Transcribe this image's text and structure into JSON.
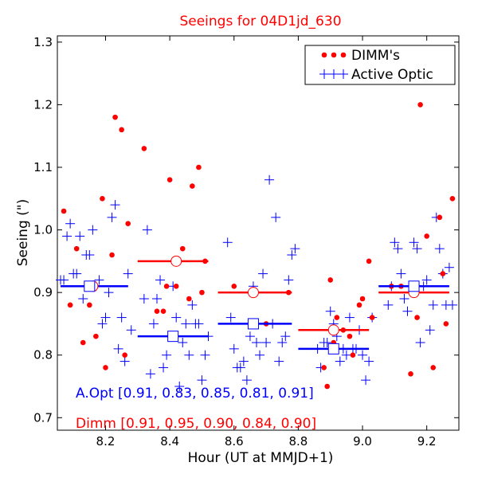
{
  "chart_data": {
    "type": "scatter",
    "title": "Seeings for 04D1jd_630",
    "xlabel": "Hour (UT at MMJD+1)",
    "ylabel": "Seeing (\")",
    "xlim": [
      8.05,
      9.3
    ],
    "ylim": [
      0.68,
      1.31
    ],
    "xticks": [
      8.2,
      8.4,
      8.6,
      8.8,
      9.0,
      9.2
    ],
    "xtick_labels": [
      "8.2",
      "8.4",
      "8.6",
      "8.8",
      "9.0",
      "9.2"
    ],
    "yticks": [
      0.7,
      0.8,
      0.9,
      1.0,
      1.1,
      1.2,
      1.3
    ],
    "ytick_labels": [
      "0.7",
      "0.8",
      "0.9",
      "1.0",
      "1.1",
      "1.2",
      "1.3"
    ],
    "grid": false,
    "legend_position": "top-right",
    "colors": {
      "dimm": "#ff0000",
      "ao": "#0000ff",
      "title": "#ff0000"
    },
    "series": [
      {
        "name": "DIMM's",
        "marker": "dot",
        "points": [
          [
            8.07,
            1.03
          ],
          [
            8.09,
            0.88
          ],
          [
            8.11,
            0.97
          ],
          [
            8.13,
            0.82
          ],
          [
            8.15,
            0.88
          ],
          [
            8.17,
            0.83
          ],
          [
            8.19,
            1.05
          ],
          [
            8.2,
            0.78
          ],
          [
            8.22,
            0.96
          ],
          [
            8.23,
            1.18
          ],
          [
            8.25,
            1.16
          ],
          [
            8.26,
            0.8
          ],
          [
            8.27,
            1.01
          ],
          [
            8.32,
            1.13
          ],
          [
            8.36,
            0.87
          ],
          [
            8.38,
            0.87
          ],
          [
            8.39,
            0.91
          ],
          [
            8.4,
            1.08
          ],
          [
            8.42,
            0.91
          ],
          [
            8.44,
            0.97
          ],
          [
            8.46,
            0.89
          ],
          [
            8.47,
            1.07
          ],
          [
            8.49,
            1.1
          ],
          [
            8.5,
            0.9
          ],
          [
            8.51,
            0.95
          ],
          [
            8.6,
            0.91
          ],
          [
            8.7,
            0.85
          ],
          [
            8.77,
            0.9
          ],
          [
            8.88,
            0.78
          ],
          [
            8.89,
            0.75
          ],
          [
            8.9,
            0.92
          ],
          [
            8.91,
            0.82
          ],
          [
            8.92,
            0.86
          ],
          [
            8.94,
            0.84
          ],
          [
            8.96,
            0.83
          ],
          [
            8.97,
            0.8
          ],
          [
            8.99,
            0.88
          ],
          [
            9.0,
            0.89
          ],
          [
            9.02,
            0.95
          ],
          [
            9.03,
            0.86
          ],
          [
            9.09,
            0.91
          ],
          [
            9.12,
            0.91
          ],
          [
            9.15,
            0.77
          ],
          [
            9.17,
            0.86
          ],
          [
            9.18,
            1.2
          ],
          [
            9.2,
            0.99
          ],
          [
            9.22,
            0.78
          ],
          [
            9.24,
            1.02
          ],
          [
            9.25,
            0.93
          ],
          [
            9.26,
            0.85
          ],
          [
            9.28,
            1.05
          ]
        ]
      },
      {
        "name": "Active Optic",
        "marker": "plus",
        "points": [
          [
            8.06,
            0.92
          ],
          [
            8.07,
            0.92
          ],
          [
            8.08,
            0.99
          ],
          [
            8.09,
            1.01
          ],
          [
            8.1,
            0.93
          ],
          [
            8.11,
            0.93
          ],
          [
            8.12,
            0.99
          ],
          [
            8.13,
            0.89
          ],
          [
            8.14,
            0.96
          ],
          [
            8.15,
            0.96
          ],
          [
            8.16,
            1.0
          ],
          [
            8.17,
            0.91
          ],
          [
            8.18,
            0.92
          ],
          [
            8.19,
            0.85
          ],
          [
            8.2,
            0.86
          ],
          [
            8.21,
            0.9
          ],
          [
            8.22,
            1.02
          ],
          [
            8.23,
            1.04
          ],
          [
            8.24,
            0.81
          ],
          [
            8.25,
            0.86
          ],
          [
            8.26,
            0.79
          ],
          [
            8.27,
            0.93
          ],
          [
            8.28,
            0.84
          ],
          [
            8.32,
            0.89
          ],
          [
            8.33,
            1.0
          ],
          [
            8.34,
            0.77
          ],
          [
            8.35,
            0.85
          ],
          [
            8.36,
            0.89
          ],
          [
            8.37,
            0.92
          ],
          [
            8.38,
            0.78
          ],
          [
            8.39,
            0.8
          ],
          [
            8.4,
            0.83
          ],
          [
            8.41,
            0.91
          ],
          [
            8.42,
            0.86
          ],
          [
            8.43,
            0.75
          ],
          [
            8.44,
            0.82
          ],
          [
            8.45,
            0.85
          ],
          [
            8.46,
            0.8
          ],
          [
            8.47,
            0.88
          ],
          [
            8.48,
            0.85
          ],
          [
            8.49,
            0.85
          ],
          [
            8.5,
            0.76
          ],
          [
            8.51,
            0.8
          ],
          [
            8.52,
            0.83
          ],
          [
            8.58,
            0.98
          ],
          [
            8.59,
            0.86
          ],
          [
            8.6,
            0.81
          ],
          [
            8.61,
            0.78
          ],
          [
            8.62,
            0.78
          ],
          [
            8.63,
            0.79
          ],
          [
            8.64,
            0.76
          ],
          [
            8.65,
            0.83
          ],
          [
            8.66,
            0.91
          ],
          [
            8.67,
            0.82
          ],
          [
            8.68,
            0.8
          ],
          [
            8.69,
            0.93
          ],
          [
            8.7,
            0.82
          ],
          [
            8.71,
            1.08
          ],
          [
            8.72,
            0.85
          ],
          [
            8.73,
            1.02
          ],
          [
            8.74,
            0.79
          ],
          [
            8.75,
            0.82
          ],
          [
            8.76,
            0.83
          ],
          [
            8.77,
            0.92
          ],
          [
            8.78,
            0.96
          ],
          [
            8.79,
            0.97
          ],
          [
            8.86,
            0.81
          ],
          [
            8.87,
            0.78
          ],
          [
            8.88,
            0.82
          ],
          [
            8.89,
            0.82
          ],
          [
            8.9,
            0.87
          ],
          [
            8.91,
            0.85
          ],
          [
            8.92,
            0.83
          ],
          [
            8.93,
            0.79
          ],
          [
            8.94,
            0.81
          ],
          [
            8.95,
            0.8
          ],
          [
            8.96,
            0.86
          ],
          [
            8.97,
            0.81
          ],
          [
            8.98,
            0.81
          ],
          [
            8.99,
            0.84
          ],
          [
            9.0,
            0.8
          ],
          [
            9.01,
            0.76
          ],
          [
            9.02,
            0.79
          ],
          [
            9.03,
            0.86
          ],
          [
            9.08,
            0.88
          ],
          [
            9.09,
            0.91
          ],
          [
            9.1,
            0.98
          ],
          [
            9.11,
            0.97
          ],
          [
            9.12,
            0.93
          ],
          [
            9.13,
            0.89
          ],
          [
            9.14,
            0.87
          ],
          [
            9.15,
            0.91
          ],
          [
            9.16,
            0.98
          ],
          [
            9.17,
            0.97
          ],
          [
            9.18,
            0.82
          ],
          [
            9.19,
            0.91
          ],
          [
            9.2,
            0.92
          ],
          [
            9.21,
            0.84
          ],
          [
            9.22,
            0.88
          ],
          [
            9.23,
            1.02
          ],
          [
            9.24,
            0.97
          ],
          [
            9.25,
            0.93
          ],
          [
            9.26,
            0.88
          ],
          [
            9.27,
            0.94
          ],
          [
            9.28,
            0.88
          ]
        ]
      }
    ],
    "bin_means": {
      "dimm": {
        "name": "Dimm",
        "bins": [
          {
            "x0": 8.06,
            "x1": 8.27,
            "mean": 0.91,
            "center": 8.16
          },
          {
            "x0": 8.3,
            "x1": 8.52,
            "mean": 0.95,
            "center": 8.42
          },
          {
            "x0": 8.55,
            "x1": 8.78,
            "mean": 0.9,
            "center": 8.66
          },
          {
            "x0": 8.8,
            "x1": 9.02,
            "mean": 0.84,
            "center": 8.91
          },
          {
            "x0": 9.05,
            "x1": 9.27,
            "mean": 0.9,
            "center": 9.16
          }
        ]
      },
      "ao": {
        "name": "A.Opt",
        "bins": [
          {
            "x0": 8.06,
            "x1": 8.27,
            "mean": 0.91,
            "center": 8.15
          },
          {
            "x0": 8.3,
            "x1": 8.52,
            "mean": 0.83,
            "center": 8.41
          },
          {
            "x0": 8.55,
            "x1": 8.78,
            "mean": 0.85,
            "center": 8.66
          },
          {
            "x0": 8.8,
            "x1": 9.02,
            "mean": 0.81,
            "center": 8.91
          },
          {
            "x0": 9.05,
            "x1": 9.27,
            "mean": 0.91,
            "center": 9.16
          }
        ]
      }
    },
    "annotations": {
      "ao_summary": "A.Opt [0.91, 0.83, 0.85, 0.81, 0.91]",
      "dimm_summary": "Dimm [0.91, 0.95, 0.90, 0.84, 0.90]"
    }
  }
}
